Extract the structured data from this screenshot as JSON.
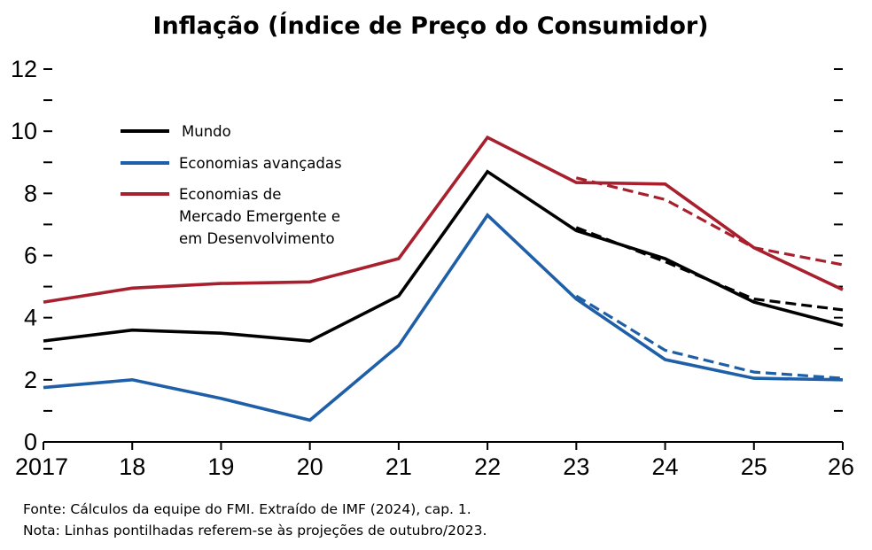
{
  "colors": {
    "world": "#000000",
    "advanced": "#1f5fa8",
    "emerging": "#a8202e"
  },
  "chart_data": {
    "type": "line",
    "title": "Inflação (Índice de Preço do Consumidor)",
    "x_tick_labels": [
      "2017",
      "18",
      "19",
      "20",
      "21",
      "22",
      "23",
      "24",
      "25",
      "26"
    ],
    "y_tick_labels": [
      "0",
      "2",
      "4",
      "6",
      "8",
      "10",
      "12"
    ],
    "x": [
      2017,
      2018,
      2019,
      2020,
      2021,
      2022,
      2023,
      2024,
      2025,
      2026
    ],
    "ylim": [
      0,
      12
    ],
    "xlim": [
      2017,
      2026
    ],
    "grid": false,
    "legend_position": "top-left",
    "series": [
      {
        "key": "world",
        "name": "Mundo",
        "color": "#000000",
        "values": [
          3.25,
          3.6,
          3.5,
          3.25,
          4.7,
          8.7,
          6.8,
          5.9,
          4.5,
          3.75
        ],
        "projection_oct2023": {
          "x": [
            2023,
            2024,
            2025,
            2026
          ],
          "values": [
            6.9,
            5.8,
            4.6,
            4.25
          ]
        }
      },
      {
        "key": "advanced",
        "name": "Economias avançadas",
        "color": "#1f5fa8",
        "values": [
          1.75,
          2.0,
          1.4,
          0.7,
          3.1,
          7.3,
          4.6,
          2.65,
          2.05,
          2.0
        ],
        "projection_oct2023": {
          "x": [
            2023,
            2024,
            2025,
            2026
          ],
          "values": [
            4.7,
            2.95,
            2.25,
            2.05
          ]
        }
      },
      {
        "key": "emerging",
        "name_lines": [
          "Economias de",
          "Mercado Emergente  e",
          "em Desenvolvimento"
        ],
        "color": "#a8202e",
        "values": [
          4.5,
          4.95,
          5.1,
          5.15,
          5.9,
          9.8,
          8.35,
          8.3,
          6.25,
          4.9
        ],
        "projection_oct2023": {
          "x": [
            2023,
            2024,
            2025,
            2026
          ],
          "values": [
            8.5,
            7.8,
            6.25,
            5.7
          ]
        }
      }
    ]
  },
  "notes": {
    "source": "Fonte: Cálculos da equipe do FMI. Extraído de IMF (2024), cap. 1.",
    "note": "Nota: Linhas pontilhadas referem-se às projeções de outubro/2023."
  }
}
